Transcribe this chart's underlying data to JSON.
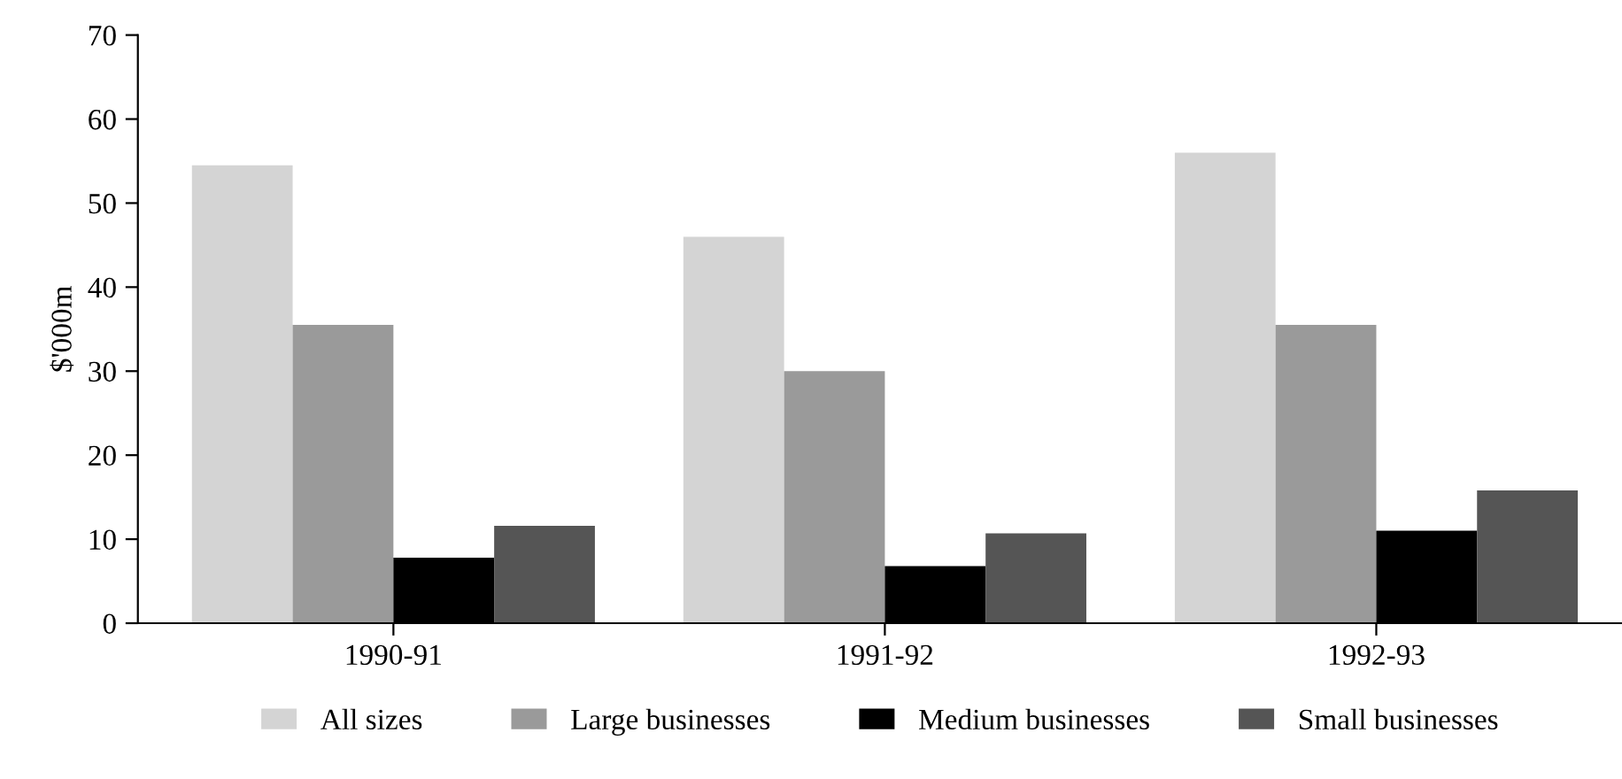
{
  "chart_data": {
    "type": "bar",
    "ylabel": "$'000m",
    "categories": [
      "1990-91",
      "1991-92",
      "1992-93"
    ],
    "series": [
      {
        "name": "All sizes",
        "color": "#d4d4d4",
        "values": [
          54.5,
          46,
          56
        ]
      },
      {
        "name": "Large businesses",
        "color": "#9a9a9a",
        "values": [
          35.5,
          30,
          35.5
        ]
      },
      {
        "name": "Medium businesses",
        "color": "#000000",
        "values": [
          7.8,
          6.8,
          11
        ]
      },
      {
        "name": "Small businesses",
        "color": "#555555",
        "values": [
          11.6,
          10.7,
          15.8
        ]
      }
    ],
    "ylim": [
      0,
      70
    ],
    "yticks": [
      0,
      10,
      20,
      30,
      40,
      50,
      60,
      70
    ],
    "grid": false,
    "legend": "bottom"
  }
}
